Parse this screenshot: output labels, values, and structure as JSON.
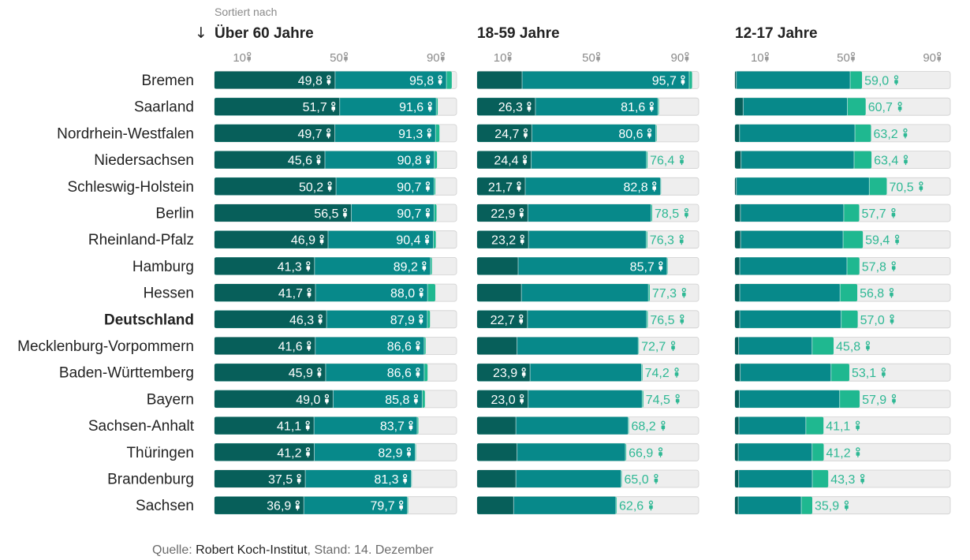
{
  "header": {
    "sort_caption": "Sortiert nach",
    "sort_arrow": "↓"
  },
  "colors": {
    "first_dose_dark": "#075f5a",
    "second_dose": "#07898a",
    "booster": "#1fb890",
    "track": "#eeeeee",
    "label_out": "#2eb894"
  },
  "footer": {
    "prefix": "Quelle: ",
    "source": "Robert Koch-Institut",
    "suffix": ", Stand: 14. Dezember"
  },
  "chart_data": {
    "type": "bar",
    "unit_icon": "person-icon",
    "states": [
      "Bremen",
      "Saarland",
      "Nordrhein-Westfalen",
      "Niedersachsen",
      "Schleswig-Holstein",
      "Berlin",
      "Rheinland-Pfalz",
      "Hamburg",
      "Hessen",
      "Deutschland",
      "Mecklenburg-Vorpommern",
      "Baden-Württemberg",
      "Bayern",
      "Sachsen-Anhalt",
      "Thüringen",
      "Brandenburg",
      "Sachsen"
    ],
    "highlight": "Deutschland",
    "panels": [
      {
        "title": "Über 60 Jahre",
        "sorted": true,
        "ticks": [
          "10",
          "50",
          "90"
        ],
        "tick_values": [
          10,
          50,
          90
        ],
        "range": [
          0,
          100
        ],
        "dark": [
          49.8,
          51.7,
          49.7,
          45.6,
          50.2,
          56.5,
          46.9,
          41.3,
          41.7,
          46.3,
          41.6,
          45.9,
          49.0,
          41.1,
          41.2,
          37.5,
          36.9
        ],
        "dark_labels": [
          "49,8",
          "51,7",
          "49,7",
          "45,6",
          "50,2",
          "56,5",
          "46,9",
          "41,3",
          "41,7",
          "46,3",
          "41,6",
          "45,9",
          "49,0",
          "41,1",
          "41,2",
          "37,5",
          "36,9"
        ],
        "mid": [
          95.8,
          91.6,
          91.3,
          90.8,
          90.7,
          90.7,
          90.4,
          89.2,
          88.0,
          87.9,
          86.6,
          86.6,
          85.8,
          83.7,
          82.9,
          81.3,
          79.7
        ],
        "mid_labels": [
          "95,8",
          "91,6",
          "91,3",
          "90,8",
          "90,7",
          "90,7",
          "90,4",
          "89,2",
          "88,0",
          "87,9",
          "86,6",
          "86,6",
          "85,8",
          "83,7",
          "82,9",
          "81,3",
          "79,7"
        ],
        "light": [
          98.0,
          92.2,
          92.9,
          91.9,
          91.2,
          91.7,
          91.4,
          89.8,
          91.2,
          89.0,
          87.2,
          88.0,
          86.9,
          84.2,
          83.2,
          81.5,
          80.0
        ]
      },
      {
        "title": "18-59 Jahre",
        "sorted": false,
        "ticks": [
          "10",
          "50",
          "90"
        ],
        "tick_values": [
          10,
          50,
          90
        ],
        "range": [
          0,
          100
        ],
        "dark": [
          20.3,
          26.3,
          24.7,
          24.4,
          21.7,
          22.9,
          23.2,
          18.5,
          20.0,
          22.7,
          18.0,
          23.9,
          23.0,
          17.5,
          18.0,
          17.5,
          16.5
        ],
        "dark_labels": [
          "",
          "26,3",
          "24,7",
          "24,4",
          "21,7",
          "22,9",
          "23,2",
          "",
          "",
          "22,7",
          "",
          "23,9",
          "23,0",
          "",
          "",
          "",
          ""
        ],
        "mid": [
          95.7,
          81.6,
          80.6,
          76.4,
          82.8,
          78.5,
          76.3,
          85.7,
          77.3,
          76.5,
          72.7,
          74.2,
          74.5,
          68.2,
          66.9,
          65.0,
          62.6
        ],
        "mid_labels": [
          "95,7",
          "81,6",
          "80,6",
          "76,4",
          "82,8",
          "78,5",
          "76,3",
          "85,7",
          "77,3",
          "76,5",
          "72,7",
          "74,2",
          "74,5",
          "68,2",
          "66,9",
          "65,0",
          "62,6"
        ],
        "light": [
          97.0,
          82.0,
          81.0,
          76.9,
          83.0,
          79.0,
          76.8,
          86.0,
          77.9,
          77.0,
          73.0,
          74.6,
          75.0,
          68.5,
          67.3,
          65.3,
          63.0
        ]
      },
      {
        "title": "12-17 Jahre",
        "sorted": false,
        "ticks": [
          "10",
          "50",
          "90"
        ],
        "tick_values": [
          10,
          50,
          90
        ],
        "range": [
          0,
          100
        ],
        "dark": [
          0.6,
          3.8,
          2.1,
          2.8,
          0.6,
          2.5,
          2.6,
          2.2,
          2.2,
          2.2,
          1.7,
          2.4,
          2.0,
          1.8,
          1.5,
          1.7,
          1.5
        ],
        "dark_labels": [
          "",
          "",
          "",
          "",
          "",
          "",
          "",
          "",
          "",
          "",
          "",
          "",
          "",
          "",
          "",
          "",
          ""
        ],
        "mid": [
          53.5,
          52.2,
          55.7,
          55.3,
          62.4,
          50.5,
          50.2,
          52.0,
          48.8,
          49.3,
          35.8,
          44.6,
          48.6,
          32.9,
          35.8,
          35.9,
          30.8
        ],
        "mid_labels": [
          "",
          "",
          "",
          "",
          "",
          "",
          "",
          "",
          "",
          "",
          "",
          "",
          "",
          "",
          "",
          "",
          ""
        ],
        "light": [
          59.0,
          60.7,
          63.2,
          63.4,
          70.5,
          57.7,
          59.4,
          57.8,
          56.8,
          57.0,
          45.8,
          53.1,
          57.9,
          41.1,
          41.2,
          43.3,
          35.9
        ],
        "light_labels": [
          "59,0",
          "60,7",
          "63,2",
          "63,4",
          "70,5",
          "57,7",
          "59,4",
          "57,8",
          "56,8",
          "57,0",
          "45,8",
          "53,1",
          "57,9",
          "41,1",
          "41,2",
          "43,3",
          "35,9"
        ]
      }
    ]
  }
}
